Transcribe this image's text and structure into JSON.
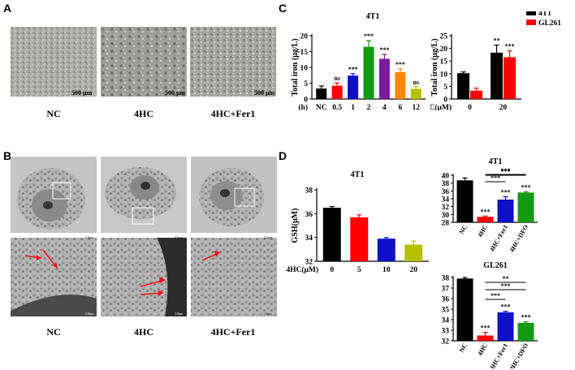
{
  "panels": {
    "A": "A",
    "B": "B",
    "C": "C",
    "D": "D"
  },
  "panelA": {
    "captions": [
      "NC",
      "4HC",
      "4HC+Fer1"
    ],
    "scale_bar": "500 μm"
  },
  "panelB": {
    "captions": [
      "NC",
      "4HC",
      "4HC+Fer1"
    ],
    "scale_top": "5.0μm",
    "scale_bottom": "2.0μm"
  },
  "colors": {
    "black": "#000000",
    "red": "#ff0000",
    "blue": "#1010c8",
    "green": "#129a12",
    "purple": "#7a1aa0",
    "orange": "#ff8800",
    "olive": "#b4c000"
  },
  "chart_data": [
    {
      "id": "C-left",
      "type": "bar",
      "title": "4T1",
      "ylabel": "Total iron (μg/L)",
      "xprefix": "(h)",
      "categories": [
        "NC",
        "0.5",
        "1",
        "2",
        "4",
        "6",
        "12"
      ],
      "values": [
        3.3,
        4.2,
        7.4,
        16.5,
        12.7,
        8.5,
        3.2
      ],
      "errors": [
        0.8,
        0.9,
        0.6,
        1.9,
        1.4,
        1.0,
        0.7
      ],
      "sig": [
        "",
        "ns",
        "***",
        "***",
        "***",
        "***",
        "ns"
      ],
      "bar_colors": [
        "#000000",
        "#ff0000",
        "#1010c8",
        "#129a12",
        "#7a1aa0",
        "#ff8800",
        "#b4c000"
      ],
      "ylim": [
        0,
        20
      ],
      "yticks": [
        "0",
        "5",
        "10",
        "15",
        "20"
      ]
    },
    {
      "id": "C-right",
      "type": "bar",
      "title": "",
      "ylabel": "Total iron (μg/L)",
      "xprefix": "4HC(μM)",
      "categories": [
        "0",
        "20"
      ],
      "series": [
        {
          "name": "4T1",
          "color": "#000000",
          "values": [
            10.2,
            18.3
          ],
          "errors": [
            0.5,
            3.0
          ]
        },
        {
          "name": "GL261",
          "color": "#ff0000",
          "values": [
            3.3,
            16.5
          ],
          "errors": [
            1.0,
            2.5
          ]
        }
      ],
      "sig": [
        [
          "",
          ""
        ],
        [
          "**",
          "***"
        ]
      ],
      "legend": "top-right",
      "ylim": [
        0,
        25
      ],
      "yticks": [
        "0",
        "5",
        "10",
        "15",
        "20",
        "25"
      ]
    },
    {
      "id": "D-left",
      "type": "bar",
      "title": "4T1",
      "ylabel": "GSH(μM)",
      "xprefix": "4HC(μM)",
      "categories": [
        "0",
        "5",
        "10",
        "20"
      ],
      "values": [
        36.5,
        35.7,
        33.9,
        33.4
      ],
      "errors": [
        0.1,
        0.2,
        0.1,
        0.3
      ],
      "bar_colors": [
        "#000000",
        "#ff0000",
        "#1010c8",
        "#b4c000"
      ],
      "ylim": [
        32,
        38
      ],
      "yticks": [
        "32",
        "34",
        "36",
        "38"
      ]
    },
    {
      "id": "D-right-top",
      "type": "bar",
      "title": "4T1",
      "categories": [
        "NC",
        "4HC",
        "4HC+Fer1",
        "4HC+DFO"
      ],
      "values": [
        38.7,
        29.4,
        33.8,
        35.6
      ],
      "errors": [
        0.6,
        0.2,
        0.7,
        0.2
      ],
      "sig": [
        "",
        "***",
        "***",
        "***"
      ],
      "bar_colors": [
        "#000000",
        "#ff0000",
        "#1010c8",
        "#129a12"
      ],
      "brackets": [
        {
          "from": 1,
          "to": 2,
          "label": "***"
        },
        {
          "from": 1,
          "to": 3,
          "label": "***"
        },
        {
          "from": 1,
          "to": 3,
          "label": "***"
        }
      ],
      "ylim": [
        28,
        40
      ],
      "yticks": [
        "28",
        "30",
        "32",
        "34",
        "36",
        "38",
        "40"
      ]
    },
    {
      "id": "D-right-bottom",
      "type": "bar",
      "title": "GL261",
      "categories": [
        "NC",
        "4HC",
        "4HC+Fer1",
        "4HC+DFO"
      ],
      "values": [
        37.9,
        32.5,
        34.7,
        33.7
      ],
      "errors": [
        0.1,
        0.3,
        0.1,
        0.1
      ],
      "sig": [
        "",
        "***",
        "***",
        "***"
      ],
      "bar_colors": [
        "#000000",
        "#ff0000",
        "#1010c8",
        "#129a12"
      ],
      "brackets": [
        {
          "from": 1,
          "to": 2,
          "label": "***"
        },
        {
          "from": 1,
          "to": 3,
          "label": "***"
        },
        {
          "from": 1,
          "to": 3,
          "label": "**"
        }
      ],
      "ylim": [
        32,
        38
      ],
      "yticks": [
        "32",
        "33",
        "34",
        "35",
        "36",
        "37",
        "38"
      ]
    }
  ]
}
